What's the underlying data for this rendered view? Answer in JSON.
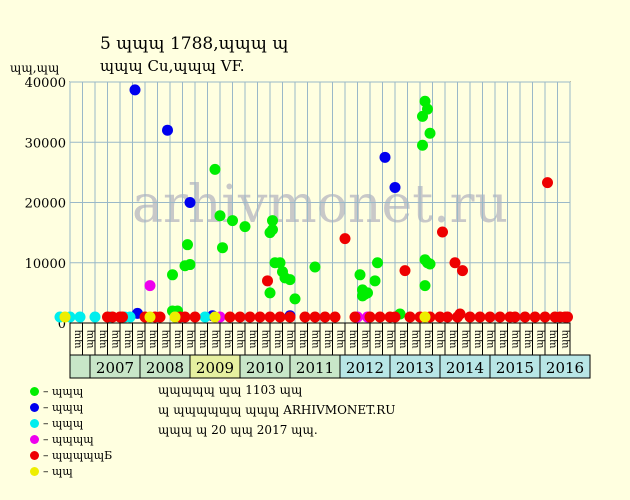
{
  "title_line1": "5 ɰɰɰ 1788,ɰɰɰ ɰ",
  "title_line2": "ɰɰɰ Cu,ɰɰɰ VF.",
  "y_unit": "ɰɰ,ɰɰ",
  "watermark": "arhivmonet.ru",
  "notes": [
    "ɰɰɰɰɰ ɰɰ 1103 ɰɰ",
    "ɰ ɰɰɰɰɰɰ ɰɰɰ ARHIVMONET.RU",
    "ɰɰɰ ɰ 20 ɰɰ 2017 ɰɰ."
  ],
  "legend": [
    {
      "label": "– ɰɰɰ",
      "color": "#00ee00"
    },
    {
      "label": "– ɰɰɰ",
      "color": "#0000ee"
    },
    {
      "label": "– ɰɰɰ",
      "color": "#00eeee"
    },
    {
      "label": "– ɰɰɰɰ",
      "color": "#ee00ee"
    },
    {
      "label": "– ɰɰɰɰɰБ",
      "color": "#ee0000"
    },
    {
      "label": "– ɰɰ",
      "color": "#eeee00"
    }
  ],
  "chart_data": {
    "type": "scatter",
    "ylim": [
      0,
      40000
    ],
    "yticks": [
      0,
      10000,
      20000,
      30000,
      40000
    ],
    "grid": true,
    "years": [
      "2007",
      "2008",
      "2009",
      "2010",
      "2011",
      "2012",
      "2013",
      "2014",
      "2015",
      "2016"
    ],
    "year_colors": [
      "#c8e6c8",
      "#c8e6c8",
      "#e6f0a0",
      "#c8e6c8",
      "#c8e6c8",
      "#b8e6e6",
      "#b8e6e6",
      "#b8e6e6",
      "#b8e6e6",
      "#b8e6e6"
    ],
    "quarter_labels": [
      "ɰɰ",
      "ɰɰ",
      "ɰɰ",
      "ɰɰ"
    ],
    "series": [
      {
        "name": "– ɰɰɰ",
        "color": "#00ee00",
        "points": [
          [
            2009.05,
            2000
          ],
          [
            2009.15,
            2000
          ],
          [
            2009.05,
            8000
          ],
          [
            2009.3,
            9500
          ],
          [
            2009.4,
            9700
          ],
          [
            2009.35,
            13000
          ],
          [
            2009.9,
            25500
          ],
          [
            2010.0,
            17800
          ],
          [
            2010.05,
            12500
          ],
          [
            2010.25,
            17000
          ],
          [
            2010.5,
            16000
          ],
          [
            2011.0,
            15000
          ],
          [
            2011.05,
            15500
          ],
          [
            2011.05,
            17000
          ],
          [
            2011.1,
            10000
          ],
          [
            2011.2,
            10000
          ],
          [
            2011.25,
            8500
          ],
          [
            2011.3,
            7500
          ],
          [
            2011.0,
            5000
          ],
          [
            2011.4,
            7200
          ],
          [
            2011.5,
            4000
          ],
          [
            2011.9,
            9300
          ],
          [
            2012.8,
            8000
          ],
          [
            2012.85,
            5500
          ],
          [
            2012.85,
            4500
          ],
          [
            2012.9,
            4800
          ],
          [
            2012.95,
            5000
          ],
          [
            2013.1,
            7000
          ],
          [
            2013.15,
            10000
          ],
          [
            2013.6,
            1500
          ],
          [
            2014.1,
            6200
          ],
          [
            2014.05,
            29500
          ],
          [
            2014.05,
            34300
          ],
          [
            2014.1,
            36800
          ],
          [
            2014.15,
            35500
          ],
          [
            2014.2,
            31500
          ],
          [
            2014.1,
            10500
          ],
          [
            2014.15,
            10000
          ],
          [
            2014.2,
            9800
          ]
        ]
      },
      {
        "name": "– ɰɰɰ",
        "color": "#0000ee",
        "points": [
          [
            2008.3,
            38700
          ],
          [
            2008.95,
            32000
          ],
          [
            2009.4,
            20000
          ],
          [
            2008.35,
            1600
          ],
          [
            2013.3,
            27500
          ],
          [
            2013.5,
            22500
          ],
          [
            2009.85,
            1200
          ],
          [
            2011.4,
            1200
          ]
        ]
      },
      {
        "name": "– ɰɰɰ",
        "color": "#00eeee",
        "points": [
          [
            2006.8,
            1000
          ],
          [
            2007.0,
            1000
          ],
          [
            2007.2,
            1000
          ],
          [
            2007.5,
            1000
          ],
          [
            2007.8,
            1000
          ],
          [
            2008.1,
            1000
          ],
          [
            2008.2,
            1000
          ],
          [
            2009.1,
            1000
          ],
          [
            2009.7,
            1000
          ]
        ]
      },
      {
        "name": "– ɰɰɰɰ",
        "color": "#ee00ee",
        "points": [
          [
            2008.6,
            6200
          ],
          [
            2012.75,
            1000
          ],
          [
            2012.95,
            1000
          ],
          [
            2010.0,
            1000
          ]
        ]
      },
      {
        "name": "– ɰɰɰɰɰБ",
        "color": "#ee0000",
        "points": [
          [
            2007.75,
            1000
          ],
          [
            2007.85,
            1000
          ],
          [
            2008.0,
            1000
          ],
          [
            2008.05,
            1000
          ],
          [
            2008.5,
            1000
          ],
          [
            2008.7,
            1000
          ],
          [
            2008.8,
            1000
          ],
          [
            2009.2,
            1000
          ],
          [
            2009.3,
            1000
          ],
          [
            2009.5,
            1000
          ],
          [
            2010.2,
            1000
          ],
          [
            2010.4,
            1000
          ],
          [
            2010.6,
            1000
          ],
          [
            2010.8,
            1000
          ],
          [
            2010.95,
            7000
          ],
          [
            2011.0,
            1000
          ],
          [
            2011.2,
            1000
          ],
          [
            2011.4,
            1000
          ],
          [
            2011.7,
            1000
          ],
          [
            2011.9,
            1000
          ],
          [
            2012.1,
            1000
          ],
          [
            2012.3,
            1000
          ],
          [
            2012.5,
            14000
          ],
          [
            2012.7,
            1000
          ],
          [
            2013.0,
            1000
          ],
          [
            2013.2,
            1000
          ],
          [
            2013.4,
            1000
          ],
          [
            2013.5,
            1000
          ],
          [
            2013.7,
            8700
          ],
          [
            2013.8,
            1000
          ],
          [
            2014.0,
            1000
          ],
          [
            2014.2,
            1000
          ],
          [
            2014.4,
            1000
          ],
          [
            2014.45,
            15100
          ],
          [
            2014.55,
            1000
          ],
          [
            2014.7,
            10000
          ],
          [
            2014.75,
            1000
          ],
          [
            2014.85,
            8700
          ],
          [
            2015.0,
            1000
          ],
          [
            2015.2,
            1000
          ],
          [
            2015.4,
            1000
          ],
          [
            2015.6,
            1000
          ],
          [
            2015.8,
            1000
          ],
          [
            2015.9,
            1000
          ],
          [
            2016.1,
            1000
          ],
          [
            2016.3,
            1000
          ],
          [
            2016.5,
            1000
          ],
          [
            2016.55,
            23300
          ],
          [
            2016.7,
            1000
          ],
          [
            2016.8,
            1000
          ],
          [
            2016.9,
            1000
          ],
          [
            2016.95,
            1000
          ],
          [
            2014.8,
            1500
          ]
        ]
      },
      {
        "name": "– ɰɰ",
        "color": "#eeee00",
        "points": [
          [
            2006.9,
            1000
          ],
          [
            2008.6,
            1000
          ],
          [
            2009.1,
            1000
          ],
          [
            2009.9,
            1000
          ],
          [
            2014.1,
            1000
          ]
        ]
      }
    ]
  }
}
